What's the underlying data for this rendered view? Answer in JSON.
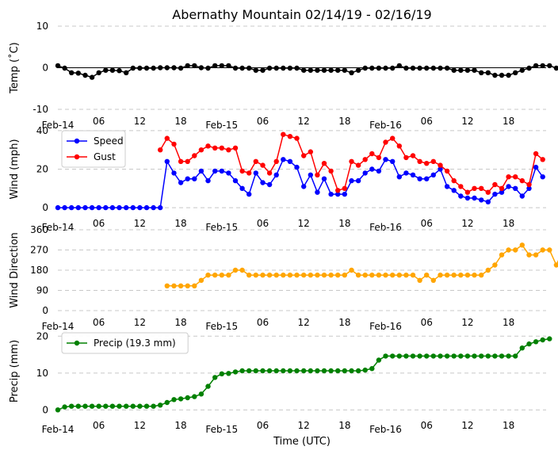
{
  "chart_data": {
    "title": "Abernathy Mountain 02/14/19 - 02/16/19",
    "xlabel": "Time (UTC)",
    "x_tick_labels": [
      "Feb-14",
      "06",
      "12",
      "18",
      "Feb-15",
      "06",
      "12",
      "18",
      "Feb-16",
      "06",
      "12",
      "18"
    ],
    "x_unit": "hours since 2019-02-14 00:00 UTC",
    "x_range": [
      0,
      71.5
    ],
    "panels": [
      {
        "id": "temp",
        "type": "line",
        "ylabel": "Temp (˚C)",
        "ylim": [
          -10,
          10
        ],
        "yticks": [
          -10,
          0,
          10
        ],
        "zero_line": true,
        "grid": "horizontal dashed",
        "series": [
          {
            "name": "Temp",
            "color": "#000000",
            "x_start": 0,
            "x_step": 1,
            "values": [
              0.5,
              -0.1,
              -1.2,
              -1.3,
              -1.8,
              -2.3,
              -1.2,
              -0.6,
              -0.6,
              -0.7,
              -1.2,
              -0.1,
              -0.1,
              -0.1,
              -0.1,
              0,
              0,
              0,
              -0.1,
              0.5,
              0.5,
              0,
              -0.1,
              0.5,
              0.5,
              0.5,
              -0.1,
              -0.1,
              -0.1,
              -0.6,
              -0.6,
              -0.1,
              -0.1,
              -0.1,
              -0.1,
              -0.1,
              -0.6,
              -0.6,
              -0.6,
              -0.6,
              -0.6,
              -0.6,
              -0.6,
              -1.2,
              -0.6,
              -0.1,
              -0.1,
              -0.1,
              -0.1,
              -0.1,
              0.5,
              -0.1,
              -0.1,
              -0.1,
              -0.1,
              -0.1,
              -0.1,
              -0.1,
              -0.6,
              -0.6,
              -0.6,
              -0.6,
              -1.2,
              -1.2,
              -1.8,
              -1.8,
              -1.8,
              -1.2,
              -0.6,
              -0.1,
              0.5,
              0.5,
              0.5,
              -0.1,
              -0.6
            ]
          }
        ]
      },
      {
        "id": "wind",
        "type": "line",
        "ylabel": "Wind (mph)",
        "ylim": [
          -2,
          42
        ],
        "yticks": [
          0,
          20,
          40
        ],
        "grid": "horizontal dashed",
        "legend": "upper left",
        "series": [
          {
            "name": "Speed",
            "color": "#0000ff",
            "x_start": 0,
            "x_step": 1,
            "values": [
              0,
              0,
              0,
              0,
              0,
              0,
              0,
              0,
              0,
              0,
              0,
              0,
              0,
              0,
              0,
              0,
              24,
              18,
              13,
              15,
              15,
              19,
              14,
              19,
              19,
              18,
              14,
              10,
              7,
              18,
              13,
              12,
              17,
              25,
              24,
              21,
              11,
              17,
              8,
              15,
              7,
              7,
              7,
              14,
              14,
              18,
              20,
              19,
              25,
              24,
              16,
              18,
              17,
              15,
              15,
              17,
              20,
              11,
              9,
              6,
              5,
              5,
              4,
              3,
              7,
              8,
              11,
              10,
              6,
              10,
              21,
              16
            ]
          },
          {
            "name": "Gust",
            "color": "#ff0000",
            "x_start": 15,
            "x_step": 1,
            "values": [
              30,
              36,
              33,
              24,
              24,
              27,
              30,
              32,
              31,
              31,
              30,
              31,
              19,
              18,
              24,
              22,
              18,
              24,
              38,
              37,
              36,
              27,
              29,
              17,
              23,
              19,
              9,
              10,
              24,
              22,
              25,
              28,
              26,
              34,
              36,
              32,
              26,
              27,
              24,
              23,
              24,
              22,
              19,
              14,
              11,
              8,
              10,
              10,
              8,
              12,
              10,
              16,
              16,
              14,
              12,
              28,
              25
            ]
          }
        ]
      },
      {
        "id": "dir",
        "type": "line",
        "ylabel": "Wind Direction",
        "ylim": [
          0,
          360
        ],
        "yticks": [
          0,
          90,
          180,
          270,
          360
        ],
        "grid": "horizontal dashed",
        "series": [
          {
            "name": "Direction",
            "color": "#ffa500",
            "x_start": 16,
            "x_step": 1,
            "values": [
              110,
              110,
              110,
              110,
              110,
              135,
              158,
              158,
              158,
              158,
              180,
              180,
              158,
              158,
              158,
              158,
              158,
              158,
              158,
              158,
              158,
              158,
              158,
              158,
              158,
              158,
              158,
              180,
              158,
              158,
              158,
              158,
              158,
              158,
              158,
              158,
              158,
              135,
              158,
              135,
              158,
              158,
              158,
              158,
              158,
              158,
              158,
              180,
              203,
              248,
              270,
              270,
              292,
              248,
              248,
              270,
              270,
              203,
              270,
              270
            ]
          }
        ]
      },
      {
        "id": "precip",
        "type": "line",
        "ylabel": "Precip (mm)",
        "ylim": [
          -1,
          22
        ],
        "yticks": [
          0,
          10,
          20
        ],
        "grid": "horizontal dashed",
        "legend": "upper left",
        "series": [
          {
            "name": "Precip (19.3 mm)",
            "color": "#008000",
            "x_start": 0,
            "x_step": 1,
            "values": [
              0,
              0.8,
              1.0,
              1.0,
              1.0,
              1.0,
              1.0,
              1.0,
              1.0,
              1.0,
              1.0,
              1.0,
              1.0,
              1.0,
              1.0,
              1.3,
              2.0,
              2.8,
              3.0,
              3.3,
              3.6,
              4.3,
              6.4,
              8.8,
              9.8,
              9.9,
              10.3,
              10.6,
              10.6,
              10.6,
              10.6,
              10.6,
              10.6,
              10.6,
              10.6,
              10.6,
              10.6,
              10.6,
              10.6,
              10.6,
              10.6,
              10.6,
              10.6,
              10.6,
              10.6,
              10.8,
              11.2,
              13.5,
              14.6,
              14.6,
              14.6,
              14.6,
              14.6,
              14.6,
              14.6,
              14.6,
              14.6,
              14.6,
              14.6,
              14.6,
              14.6,
              14.6,
              14.6,
              14.6,
              14.6,
              14.6,
              14.6,
              14.6,
              16.8,
              17.9,
              18.5,
              19.0,
              19.3
            ]
          }
        ]
      }
    ]
  }
}
